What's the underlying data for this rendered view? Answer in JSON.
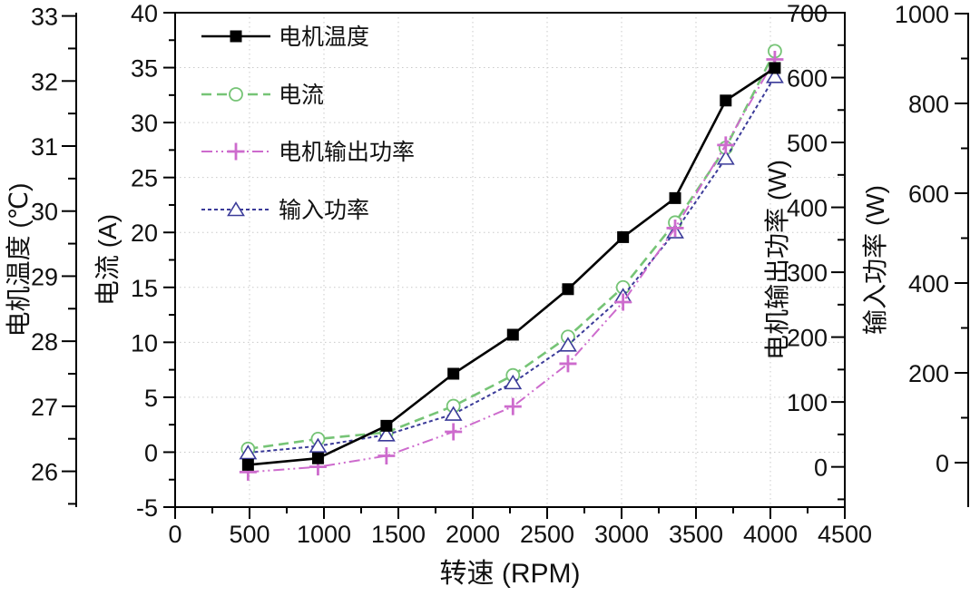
{
  "chart_data": {
    "type": "line",
    "title": "",
    "x_values": [
      490,
      960,
      1420,
      1870,
      2270,
      2640,
      3010,
      3360,
      3700,
      4030
    ],
    "series": [
      {
        "id": "motor-temperature",
        "name": "电机温度",
        "axis": "temp",
        "color": "#000000",
        "marker": "filled-square",
        "line_style": "solid",
        "values": [
          26.1,
          26.2,
          26.7,
          27.5,
          28.1,
          28.8,
          29.6,
          30.2,
          31.7,
          32.2
        ]
      },
      {
        "id": "current",
        "name": "电流",
        "axis": "current",
        "color": "#76c476",
        "marker": "open-circle",
        "line_style": "dashed",
        "values": [
          0.3,
          1.2,
          1.8,
          4.2,
          7.0,
          10.5,
          15.0,
          20.9,
          27.7,
          36.5
        ]
      },
      {
        "id": "motor-output-power",
        "name": "电机输出功率",
        "axis": "pout",
        "color": "#cd6bcd",
        "marker": "plus",
        "line_style": "dash-dot-dot",
        "values": [
          -8,
          0,
          17,
          54,
          93,
          159,
          254,
          368,
          496,
          628
        ]
      },
      {
        "id": "input-power",
        "name": "输入功率",
        "axis": "pin",
        "color": "#3b3b99",
        "marker": "open-triangle",
        "line_style": "short-dash",
        "values": [
          22,
          37,
          62,
          108,
          178,
          262,
          371,
          514,
          678,
          860
        ]
      }
    ],
    "draw_order": [
      1,
      3,
      2,
      0
    ],
    "axes": {
      "x": {
        "label": "转速 (RPM)",
        "min": 0,
        "max": 4500,
        "major_ticks": [
          0,
          500,
          1000,
          1500,
          2000,
          2500,
          3000,
          3500,
          4000,
          4500
        ],
        "minor_step": 250
      },
      "temp": {
        "label": "电机温度 (℃)",
        "min": 25.45,
        "max": 33.05,
        "major_ticks": [
          26,
          27,
          28,
          29,
          30,
          31,
          32,
          33
        ],
        "minor_step": 0.5
      },
      "current": {
        "label": "电流 (A)",
        "min": -5,
        "max": 40,
        "major_ticks": [
          -5,
          0,
          5,
          10,
          15,
          20,
          25,
          30,
          35,
          40
        ],
        "minor_step": 2.5,
        "grid": true
      },
      "pout": {
        "label": "电机输出功率 (W)",
        "min": -62,
        "max": 700,
        "major_ticks": [
          0,
          100,
          200,
          300,
          400,
          500,
          600,
          700
        ],
        "minor_step": 50
      },
      "pin": {
        "label": "输入功率 (W)",
        "min": -99,
        "max": 1002,
        "major_ticks": [
          0,
          200,
          400,
          600,
          800,
          1000
        ],
        "minor_step": 100
      }
    },
    "legend": {
      "position": "top-left-inside",
      "items": [
        "电机温度",
        "电流",
        "电机输出功率",
        "输入功率"
      ]
    },
    "grid": {
      "show": true,
      "color": "#c9c9c9",
      "style": "dotted"
    },
    "background": "#ffffff"
  }
}
